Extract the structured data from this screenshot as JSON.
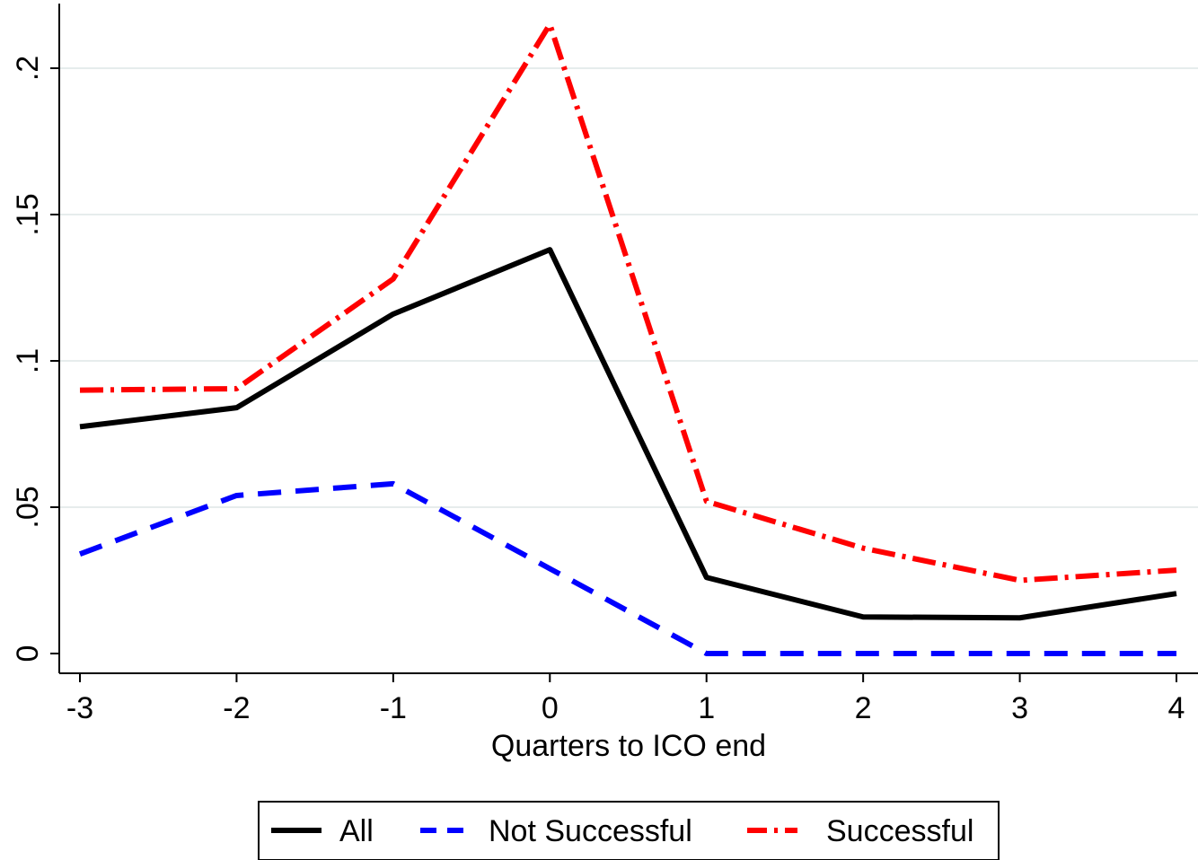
{
  "chart_data": {
    "type": "line",
    "title": "",
    "xlabel": "Quarters to ICO end",
    "ylabel": "",
    "x": [
      -3,
      -2,
      -1,
      0,
      1,
      2,
      3,
      4
    ],
    "x_tick_labels": [
      "-3",
      "-2",
      "-1",
      "0",
      "1",
      "2",
      "3",
      "4"
    ],
    "y_ticks": [
      0,
      0.05,
      0.1,
      0.15,
      0.2
    ],
    "y_tick_labels": [
      "0",
      ".05",
      ".1",
      ".15",
      ".2"
    ],
    "xlim": [
      -3,
      4
    ],
    "ylim": [
      0,
      0.2
    ],
    "grid": true,
    "legend_position": "bottom",
    "series": [
      {
        "name": "All",
        "color": "#000000",
        "style": "solid",
        "values": [
          0.0775,
          0.084,
          0.116,
          0.138,
          0.026,
          0.0125,
          0.0122,
          0.0205
        ]
      },
      {
        "name": "Not Successful",
        "color": "#0000ff",
        "style": "dash",
        "values": [
          0.034,
          0.054,
          0.058,
          0.029,
          0.0,
          0.0,
          0.0,
          0.0
        ]
      },
      {
        "name": "Successful",
        "color": "#ff0000",
        "style": "dash-dot",
        "values": [
          0.09,
          0.0905,
          0.128,
          0.215,
          0.052,
          0.036,
          0.025,
          0.0285
        ]
      }
    ]
  }
}
